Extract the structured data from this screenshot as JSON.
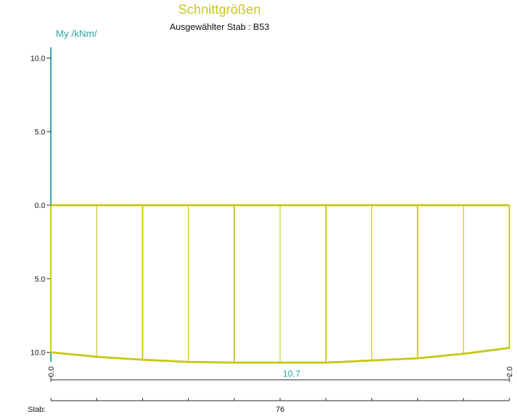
{
  "chart_data": {
    "type": "area",
    "title": "Schnittgrößen",
    "subtitle": "Ausgewählter Stab :  B53",
    "ylabel": "My /kNm/",
    "yticks": [
      {
        "value": 10,
        "label": "10.0"
      },
      {
        "value": 5,
        "label": "5.0"
      },
      {
        "value": 0,
        "label": "0.0"
      },
      {
        "value": -5,
        "label": "5.0"
      },
      {
        "value": -10,
        "label": "10.0"
      }
    ],
    "ylim": [
      -10.7,
      10.7
    ],
    "xlim": [
      0,
      2.0
    ],
    "xticks": [
      {
        "value": 0,
        "label": "0.0"
      },
      {
        "value": 2.0,
        "label": "2.0"
      }
    ],
    "x": [
      0,
      0.2,
      0.4,
      0.6,
      0.8,
      1.0,
      1.2,
      1.4,
      1.6,
      1.8,
      2.0
    ],
    "y": [
      -10.0,
      -10.3,
      -10.5,
      -10.65,
      -10.7,
      -10.7,
      -10.7,
      -10.55,
      -10.4,
      -10.1,
      -9.7
    ],
    "max_label": {
      "x": 1.05,
      "value": -10.7,
      "text": "10.7"
    },
    "bar_label_prefix": "Stab:",
    "bar_label": "76",
    "colors": {
      "curve": "#c8c81e",
      "axis": "#2aa8a8",
      "title": "#c8c81e",
      "text": "#111111"
    }
  }
}
